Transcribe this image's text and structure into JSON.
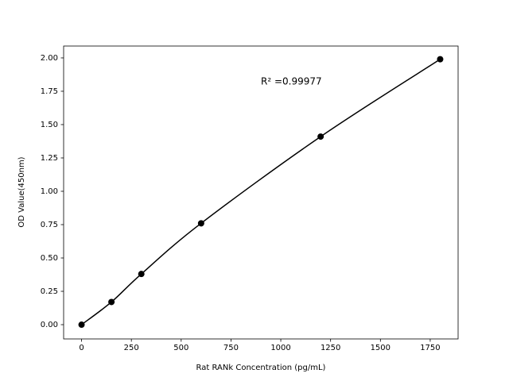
{
  "chart_data": {
    "type": "scatter",
    "x_label": "Rat RANk Concentration (pg/mL)",
    "y_label": "OD Value(450nm)",
    "annotation": "R² =0.99977",
    "x": [
      0,
      150,
      300,
      600,
      1200,
      1800
    ],
    "values": [
      0.0,
      0.17,
      0.38,
      0.76,
      1.41,
      1.99
    ],
    "color": "#000000",
    "line": true,
    "marker": "circle",
    "xlim": [
      -90,
      1890
    ],
    "ylim": [
      -0.107,
      2.089
    ],
    "xticks": [
      0,
      250,
      500,
      750,
      1000,
      1250,
      1500,
      1750
    ],
    "yticks": [
      {
        "value": 0,
        "label": "0.00"
      },
      {
        "value": 0.25,
        "label": "0.25"
      },
      {
        "value": 0.5,
        "label": "0.50"
      },
      {
        "value": 0.75,
        "label": "0.75"
      },
      {
        "value": 1,
        "label": "1.00"
      },
      {
        "value": 1.25,
        "label": "1.25"
      },
      {
        "value": 1.5,
        "label": "1.50"
      },
      {
        "value": 1.75,
        "label": "1.75"
      },
      {
        "value": 2,
        "label": "2.00"
      }
    ],
    "grid": false
  }
}
